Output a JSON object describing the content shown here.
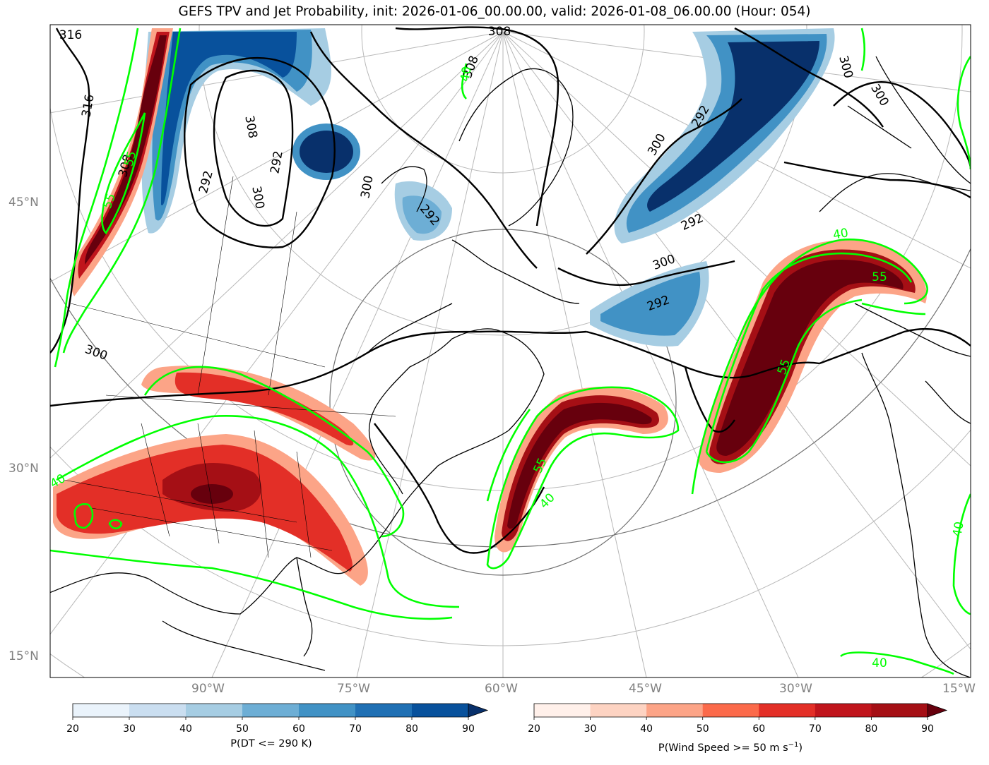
{
  "title": "GEFS TPV and Jet Probability, init: 2026-01-06_00.00.00, valid: 2026-01-08_06.00.00 (Hour: 054)",
  "lat_labels": [
    "45°N",
    "30°N",
    "15°N"
  ],
  "lon_labels": [
    "90°W",
    "75°W",
    "60°W",
    "45°W",
    "30°W",
    "15°W"
  ],
  "contour_labels": {
    "theta": [
      "316",
      "316",
      "308",
      "308",
      "308",
      "308",
      "300",
      "300",
      "300",
      "300",
      "300",
      "300",
      "300",
      "292",
      "292",
      "292",
      "292",
      "292",
      "292"
    ],
    "jet": [
      "55",
      "55",
      "55",
      "55",
      "55",
      "40",
      "40",
      "40",
      "40",
      "40",
      "40"
    ]
  },
  "colorbar_tpv": {
    "label": "P(DT <= 290 K)",
    "ticks": [
      "20",
      "30",
      "40",
      "50",
      "60",
      "70",
      "80",
      "90"
    ],
    "colors": [
      "#eaf3fb",
      "#cadef0",
      "#a6cde3",
      "#6daed5",
      "#4192c5",
      "#2070b4",
      "#08519c"
    ],
    "extend_color": "#08306b"
  },
  "colorbar_jet": {
    "label": "P(Wind Speed >= 50 m s",
    "label_sup": "−1",
    "label_end": ")",
    "ticks": [
      "20",
      "30",
      "40",
      "50",
      "60",
      "70",
      "80",
      "90"
    ],
    "colors": [
      "#fff0ea",
      "#fdd3c2",
      "#fca487",
      "#fb6a4a",
      "#e32f27",
      "#c0151c",
      "#a50f15"
    ],
    "extend_color": "#67000d"
  },
  "colors": {
    "jet_contour": "#00ff00",
    "theta_contour": "#000000",
    "coast": "#000000",
    "grid": "#b0b0b0"
  }
}
